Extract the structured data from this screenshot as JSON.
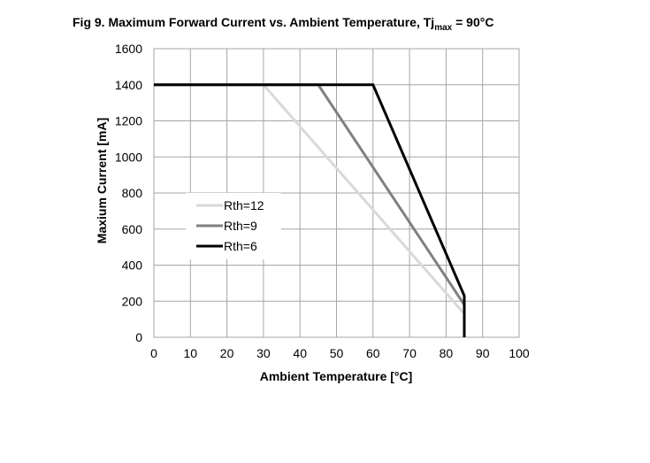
{
  "chart_data": {
    "type": "line",
    "title": {
      "main": "Fig 9. Maximum Forward Current vs. Ambient Temperature, Tj",
      "subscript": "max",
      "suffix": " = 90°C"
    },
    "xlabel": "Ambient Temperature [°C]",
    "ylabel": "Maxium Current [mA]",
    "xlim": [
      0,
      100
    ],
    "ylim": [
      0,
      1600
    ],
    "xticks": [
      "0",
      "10",
      "20",
      "30",
      "40",
      "50",
      "60",
      "70",
      "80",
      "90",
      "100"
    ],
    "yticks": [
      "0",
      "200",
      "400",
      "600",
      "800",
      "1000",
      "1200",
      "1400",
      "1600"
    ],
    "grid": true,
    "legend_position": "center-left",
    "series": [
      {
        "name": "Rth=12",
        "color": "#d9d9d9",
        "points": [
          [
            0,
            1400
          ],
          [
            30,
            1400
          ],
          [
            85,
            130
          ],
          [
            85,
            0
          ]
        ]
      },
      {
        "name": "Rth=9",
        "color": "#808080",
        "points": [
          [
            0,
            1400
          ],
          [
            45,
            1400
          ],
          [
            85,
            180
          ],
          [
            85,
            0
          ]
        ]
      },
      {
        "name": "Rth=6",
        "color": "#000000",
        "points": [
          [
            0,
            1400
          ],
          [
            60,
            1400
          ],
          [
            85,
            230
          ],
          [
            85,
            0
          ]
        ]
      }
    ]
  }
}
